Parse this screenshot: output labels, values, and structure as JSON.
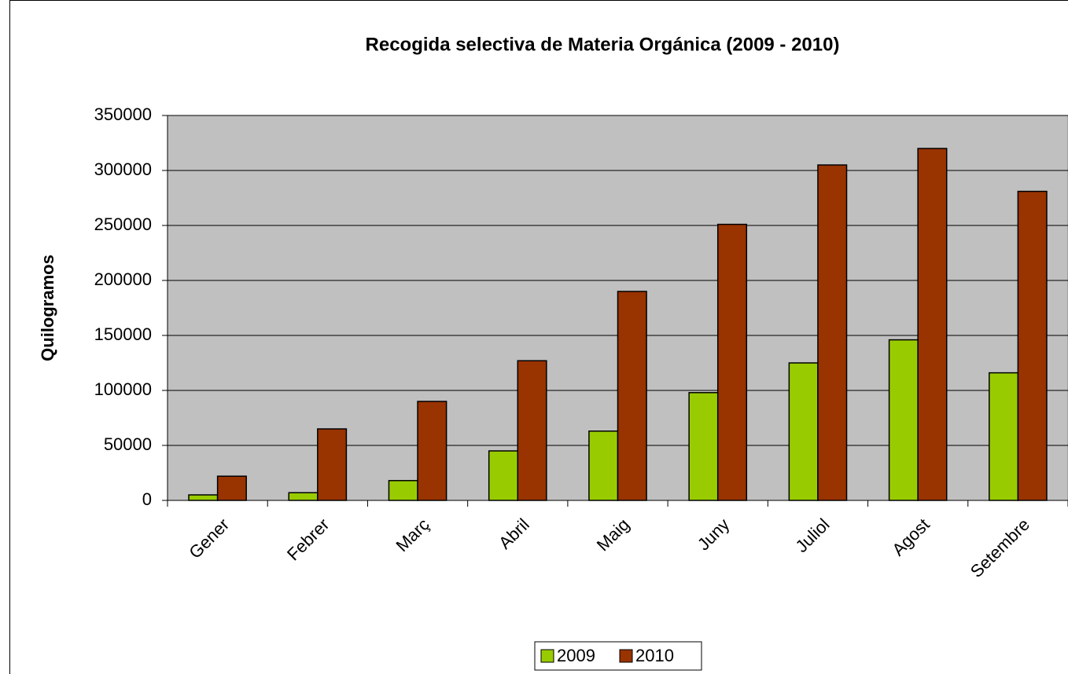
{
  "chart_data": {
    "type": "bar",
    "title": "Recogida selectiva de Materia Orgánica (2009 - 2010)",
    "y_label": "Quilogramos",
    "categories": [
      "Gener",
      "Febrer",
      "Març",
      "Abril",
      "Maig",
      "Juny",
      "Juliol",
      "Agost",
      "Setembre"
    ],
    "series": [
      {
        "name": "2009",
        "color": "#99cc00",
        "values": [
          5000,
          7000,
          18000,
          45000,
          63000,
          98000,
          125000,
          146000,
          116000
        ]
      },
      {
        "name": "2010",
        "color": "#993300",
        "values": [
          22000,
          65000,
          90000,
          127000,
          190000,
          251000,
          305000,
          320000,
          281000
        ]
      }
    ],
    "ylim": [
      0,
      350000
    ],
    "yticks": [
      0,
      50000,
      100000,
      150000,
      200000,
      250000,
      300000,
      350000
    ],
    "grid": true,
    "legend": "bottom"
  }
}
